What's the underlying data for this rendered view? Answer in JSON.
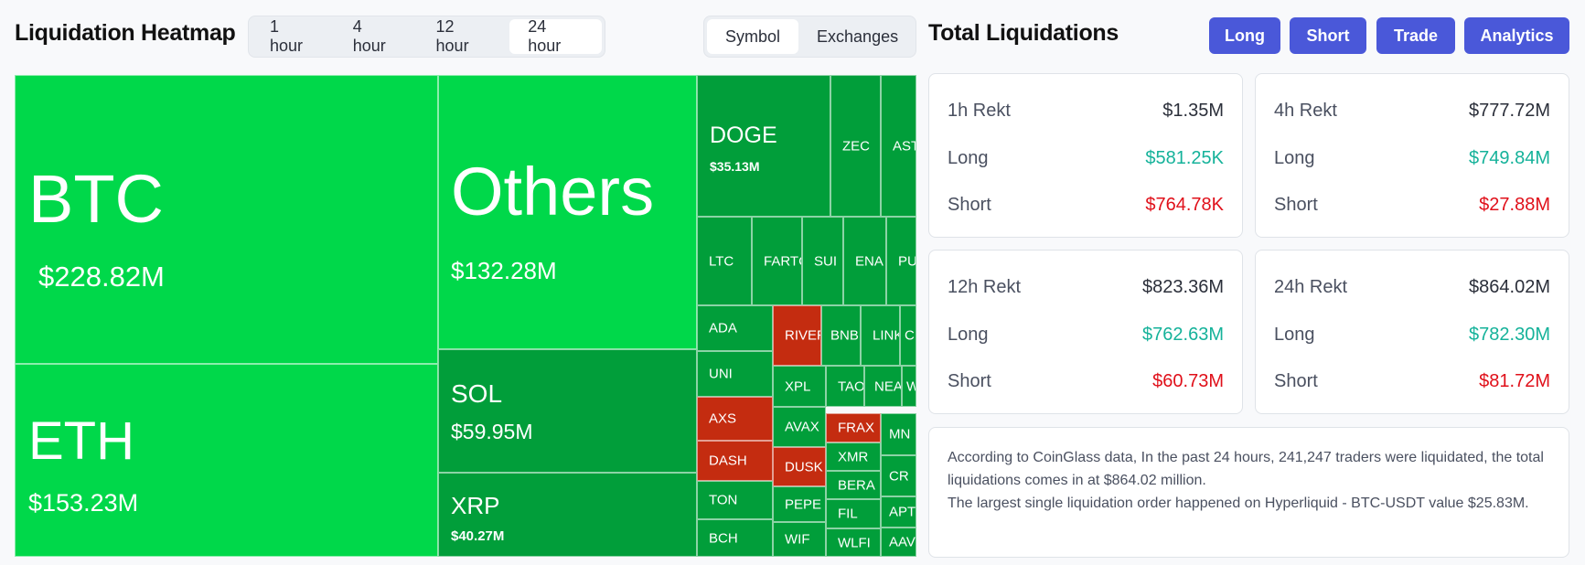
{
  "heatmap_title": "Liquidation Heatmap",
  "time_tabs": [
    "1 hour",
    "4 hour",
    "12 hour",
    "24 hour"
  ],
  "active_time_tab": "24 hour",
  "view_tabs": [
    "Symbol",
    "Exchanges"
  ],
  "active_view_tab": "Symbol",
  "total_title": "Total Liquidations",
  "buttons": {
    "long": "Long",
    "short": "Short",
    "trade": "Trade",
    "analytics": "Analytics"
  },
  "tiles": {
    "btc": {
      "symbol": "BTC",
      "value": "$228.82M"
    },
    "others": {
      "symbol": "Others",
      "value": "$132.28M"
    },
    "eth": {
      "symbol": "ETH",
      "value": "$153.23M"
    },
    "sol": {
      "symbol": "SOL",
      "value": "$59.95M"
    },
    "xrp": {
      "symbol": "XRP",
      "value": "$40.27M"
    },
    "doge": {
      "symbol": "DOGE",
      "value": "$35.13M"
    },
    "zec": "ZEC",
    "ast": "AST",
    "ltc": "LTC",
    "fartc": "FARTC",
    "sui": "SUI",
    "ena": "ENA",
    "pu": "PU",
    "ada": "ADA",
    "river": "RIVER",
    "bnb": "BNB",
    "link": "LINK",
    "c": "C",
    "uni": "UNI",
    "xpl": "XPL",
    "tao": "TAO",
    "nea": "NEA",
    "w": "W",
    "axs": "AXS",
    "avax": "AVAX",
    "frax": "FRAX",
    "mn": "MN",
    "dash": "DASH",
    "dusk": "DUSK",
    "xmr": "XMR",
    "cr": "CR",
    "ton": "TON",
    "pepe": "PEPE",
    "bera": "BERA",
    "apt": "APT",
    "fil": "FIL",
    "bch": "BCH",
    "wif": "WIF",
    "wlfi": "WLFI",
    "aav": "AAV"
  },
  "stats": {
    "h1": {
      "label": "1h Rekt",
      "total": "$1.35M",
      "long_label": "Long",
      "long": "$581.25K",
      "short_label": "Short",
      "short": "$764.78K"
    },
    "h4": {
      "label": "4h Rekt",
      "total": "$777.72M",
      "long_label": "Long",
      "long": "$749.84M",
      "short_label": "Short",
      "short": "$27.88M"
    },
    "h12": {
      "label": "12h Rekt",
      "total": "$823.36M",
      "long_label": "Long",
      "long": "$762.63M",
      "short_label": "Short",
      "short": "$60.73M"
    },
    "h24": {
      "label": "24h Rekt",
      "total": "$864.02M",
      "long_label": "Long",
      "long": "$782.30M",
      "short_label": "Short",
      "short": "$81.72M"
    }
  },
  "note": {
    "line1": "According to CoinGlass data, In the past 24 hours, 241,247 traders were liquidated, the total liquidations comes in at $864.02 million.",
    "line2": "The largest single liquidation order happened on Hyperliquid - BTC-USDT value $25.83M."
  },
  "colors": {
    "bright_green": "#00d84a",
    "dark_green": "#019e3a",
    "red": "#c42c10",
    "accent": "#4a58d9",
    "long_green": "#15b29a",
    "short_red": "#e0101a"
  }
}
